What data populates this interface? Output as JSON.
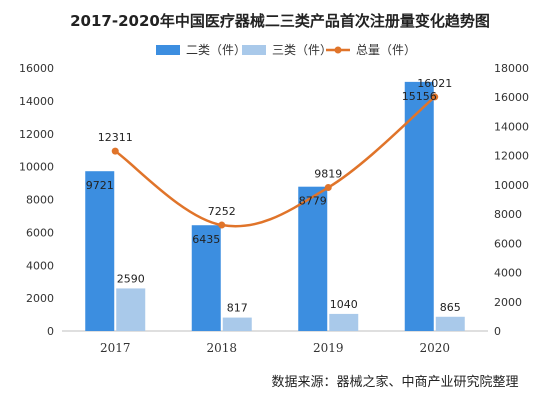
{
  "source": "数据来源：器械之家、中商产业研究院整理",
  "colors": {
    "class2": "#3c8ee0",
    "class3": "#a9c9ea",
    "total": "#e0742a",
    "axis": "#bfbfbf",
    "grid": "#e6e6e6"
  },
  "chart_data": {
    "type": "bar",
    "title": "2017-2020年中国医疗器械二三类产品首次注册量变化趋势图",
    "categories": [
      "2017",
      "2018",
      "2019",
      "2020"
    ],
    "series": [
      {
        "name": "二类（件）",
        "type": "bar",
        "axis": "left",
        "values": [
          9721,
          6435,
          8779,
          15156
        ]
      },
      {
        "name": "三类（件）",
        "type": "bar",
        "axis": "left",
        "values": [
          2590,
          817,
          1040,
          865
        ]
      },
      {
        "name": "总量（件）",
        "type": "line",
        "axis": "right",
        "values": [
          12311,
          7252,
          9819,
          16021
        ]
      }
    ],
    "ylim_left": [
      0,
      16000
    ],
    "yticks_left": [
      0,
      2000,
      4000,
      6000,
      8000,
      10000,
      12000,
      14000,
      16000
    ],
    "ylim_right": [
      0,
      18000
    ],
    "yticks_right": [
      0,
      2000,
      4000,
      6000,
      8000,
      10000,
      12000,
      14000,
      16000,
      18000
    ],
    "legend_position": "top",
    "grid": false
  }
}
